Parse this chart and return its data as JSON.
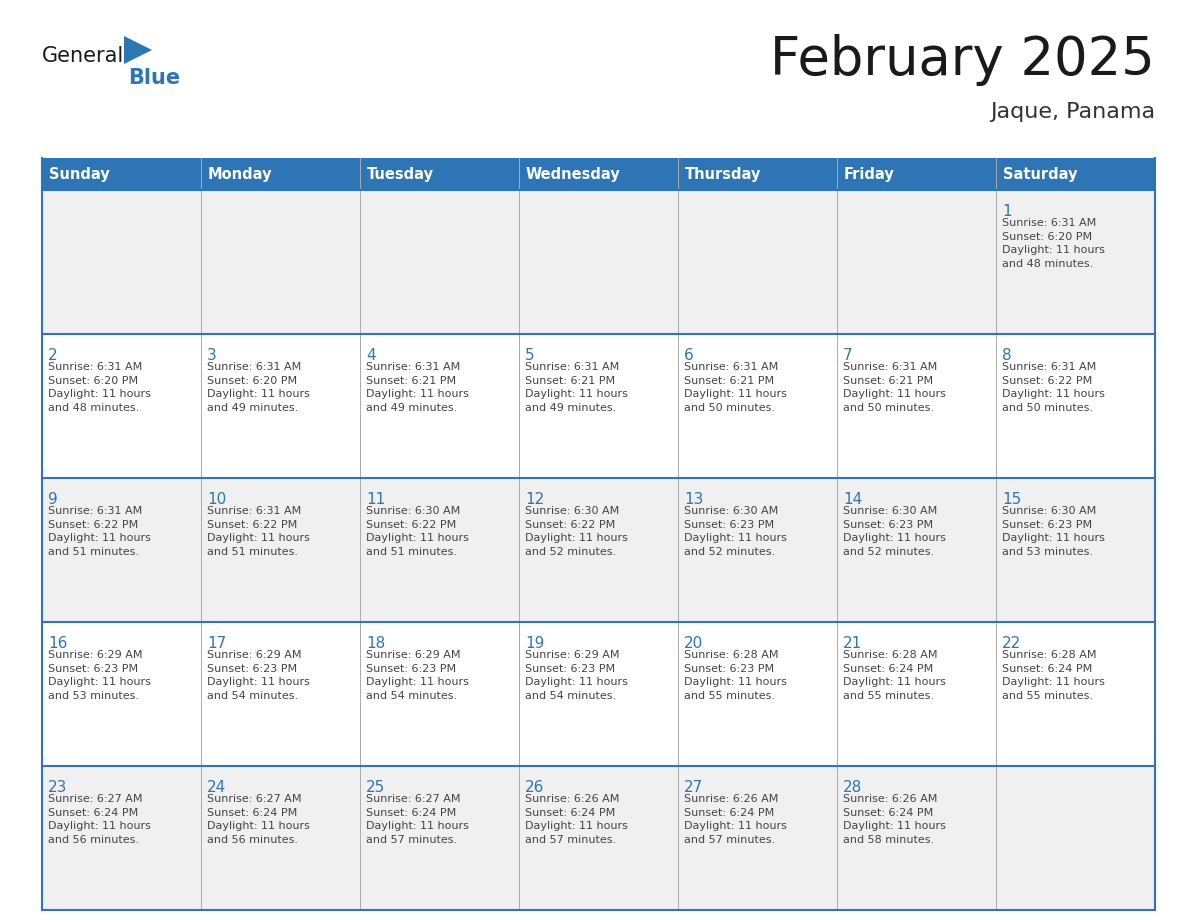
{
  "title": "February 2025",
  "subtitle": "Jaque, Panama",
  "header_color": "#2E75B6",
  "header_text_color": "#FFFFFF",
  "cell_bg_white": "#FFFFFF",
  "cell_bg_gray": "#F0F0F0",
  "border_color": "#2E75B6",
  "divider_color": "#AAAAAA",
  "day_num_color": "#2E75B6",
  "info_text_color": "#444444",
  "title_color": "#1a1a1a",
  "subtitle_color": "#333333",
  "logo_general_color": "#1a1a1a",
  "logo_blue_color": "#2E75B6",
  "logo_triangle_color": "#2E75B6",
  "days_of_week": [
    "Sunday",
    "Monday",
    "Tuesday",
    "Wednesday",
    "Thursday",
    "Friday",
    "Saturday"
  ],
  "weeks": [
    [
      {
        "day": "",
        "info": ""
      },
      {
        "day": "",
        "info": ""
      },
      {
        "day": "",
        "info": ""
      },
      {
        "day": "",
        "info": ""
      },
      {
        "day": "",
        "info": ""
      },
      {
        "day": "",
        "info": ""
      },
      {
        "day": "1",
        "info": "Sunrise: 6:31 AM\nSunset: 6:20 PM\nDaylight: 11 hours\nand 48 minutes."
      }
    ],
    [
      {
        "day": "2",
        "info": "Sunrise: 6:31 AM\nSunset: 6:20 PM\nDaylight: 11 hours\nand 48 minutes."
      },
      {
        "day": "3",
        "info": "Sunrise: 6:31 AM\nSunset: 6:20 PM\nDaylight: 11 hours\nand 49 minutes."
      },
      {
        "day": "4",
        "info": "Sunrise: 6:31 AM\nSunset: 6:21 PM\nDaylight: 11 hours\nand 49 minutes."
      },
      {
        "day": "5",
        "info": "Sunrise: 6:31 AM\nSunset: 6:21 PM\nDaylight: 11 hours\nand 49 minutes."
      },
      {
        "day": "6",
        "info": "Sunrise: 6:31 AM\nSunset: 6:21 PM\nDaylight: 11 hours\nand 50 minutes."
      },
      {
        "day": "7",
        "info": "Sunrise: 6:31 AM\nSunset: 6:21 PM\nDaylight: 11 hours\nand 50 minutes."
      },
      {
        "day": "8",
        "info": "Sunrise: 6:31 AM\nSunset: 6:22 PM\nDaylight: 11 hours\nand 50 minutes."
      }
    ],
    [
      {
        "day": "9",
        "info": "Sunrise: 6:31 AM\nSunset: 6:22 PM\nDaylight: 11 hours\nand 51 minutes."
      },
      {
        "day": "10",
        "info": "Sunrise: 6:31 AM\nSunset: 6:22 PM\nDaylight: 11 hours\nand 51 minutes."
      },
      {
        "day": "11",
        "info": "Sunrise: 6:30 AM\nSunset: 6:22 PM\nDaylight: 11 hours\nand 51 minutes."
      },
      {
        "day": "12",
        "info": "Sunrise: 6:30 AM\nSunset: 6:22 PM\nDaylight: 11 hours\nand 52 minutes."
      },
      {
        "day": "13",
        "info": "Sunrise: 6:30 AM\nSunset: 6:23 PM\nDaylight: 11 hours\nand 52 minutes."
      },
      {
        "day": "14",
        "info": "Sunrise: 6:30 AM\nSunset: 6:23 PM\nDaylight: 11 hours\nand 52 minutes."
      },
      {
        "day": "15",
        "info": "Sunrise: 6:30 AM\nSunset: 6:23 PM\nDaylight: 11 hours\nand 53 minutes."
      }
    ],
    [
      {
        "day": "16",
        "info": "Sunrise: 6:29 AM\nSunset: 6:23 PM\nDaylight: 11 hours\nand 53 minutes."
      },
      {
        "day": "17",
        "info": "Sunrise: 6:29 AM\nSunset: 6:23 PM\nDaylight: 11 hours\nand 54 minutes."
      },
      {
        "day": "18",
        "info": "Sunrise: 6:29 AM\nSunset: 6:23 PM\nDaylight: 11 hours\nand 54 minutes."
      },
      {
        "day": "19",
        "info": "Sunrise: 6:29 AM\nSunset: 6:23 PM\nDaylight: 11 hours\nand 54 minutes."
      },
      {
        "day": "20",
        "info": "Sunrise: 6:28 AM\nSunset: 6:23 PM\nDaylight: 11 hours\nand 55 minutes."
      },
      {
        "day": "21",
        "info": "Sunrise: 6:28 AM\nSunset: 6:24 PM\nDaylight: 11 hours\nand 55 minutes."
      },
      {
        "day": "22",
        "info": "Sunrise: 6:28 AM\nSunset: 6:24 PM\nDaylight: 11 hours\nand 55 minutes."
      }
    ],
    [
      {
        "day": "23",
        "info": "Sunrise: 6:27 AM\nSunset: 6:24 PM\nDaylight: 11 hours\nand 56 minutes."
      },
      {
        "day": "24",
        "info": "Sunrise: 6:27 AM\nSunset: 6:24 PM\nDaylight: 11 hours\nand 56 minutes."
      },
      {
        "day": "25",
        "info": "Sunrise: 6:27 AM\nSunset: 6:24 PM\nDaylight: 11 hours\nand 57 minutes."
      },
      {
        "day": "26",
        "info": "Sunrise: 6:26 AM\nSunset: 6:24 PM\nDaylight: 11 hours\nand 57 minutes."
      },
      {
        "day": "27",
        "info": "Sunrise: 6:26 AM\nSunset: 6:24 PM\nDaylight: 11 hours\nand 57 minutes."
      },
      {
        "day": "28",
        "info": "Sunrise: 6:26 AM\nSunset: 6:24 PM\nDaylight: 11 hours\nand 58 minutes."
      },
      {
        "day": "",
        "info": ""
      }
    ]
  ]
}
